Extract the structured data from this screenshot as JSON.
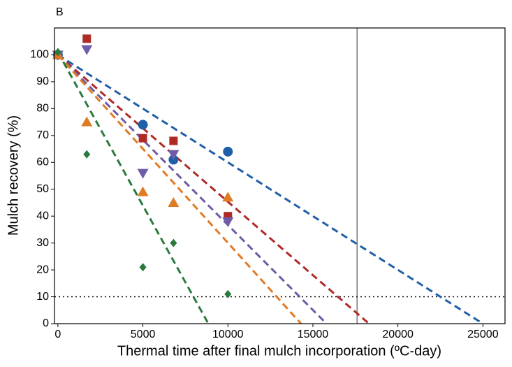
{
  "chart_data": {
    "type": "scatter",
    "title": "B",
    "xlabel": "Thermal time after final mulch incorporation (ºC-day)",
    "ylabel": "Mulch recovery (%)",
    "xlim": [
      -200,
      26300
    ],
    "ylim": [
      0,
      110
    ],
    "xticks": [
      0,
      5000,
      10000,
      15000,
      20000,
      25000
    ],
    "yticks": [
      0,
      10,
      20,
      30,
      40,
      50,
      60,
      70,
      80,
      90,
      100
    ],
    "grid": false,
    "vline": 17600,
    "vline_color": "#777777",
    "hline": 10,
    "hline_color": "#000000",
    "series": [
      {
        "color": "#1f5fa8",
        "marker": "circle",
        "x": [
          0,
          5000,
          6800,
          10000
        ],
        "values": [
          100,
          74,
          61,
          64
        ],
        "fit_x": [
          0,
          25000
        ],
        "fit_y": [
          100,
          0
        ]
      },
      {
        "color": "#b02a25",
        "marker": "square",
        "x": [
          0,
          1700,
          5000,
          6800,
          10000
        ],
        "values": [
          100,
          106,
          69,
          68,
          40
        ],
        "fit_x": [
          0,
          18300
        ],
        "fit_y": [
          100,
          0
        ]
      },
      {
        "color": "#6f5ca8",
        "marker": "triangle-down",
        "x": [
          0,
          1700,
          5000,
          6800,
          10000
        ],
        "values": [
          100,
          102,
          56,
          63,
          38
        ],
        "fit_x": [
          0,
          15800
        ],
        "fit_y": [
          100,
          0
        ]
      },
      {
        "color": "#e07b24",
        "marker": "triangle-up",
        "x": [
          0,
          1700,
          5000,
          6800,
          10000
        ],
        "values": [
          100,
          75,
          49,
          45,
          47
        ],
        "fit_x": [
          0,
          14300
        ],
        "fit_y": [
          100,
          0
        ]
      },
      {
        "color": "#2a7a3e",
        "marker": "diamond",
        "x": [
          0,
          1700,
          5000,
          6800,
          10000
        ],
        "values": [
          101,
          63,
          21,
          30,
          11
        ],
        "fit_x": [
          0,
          8850
        ],
        "fit_y": [
          101,
          0
        ]
      }
    ]
  }
}
